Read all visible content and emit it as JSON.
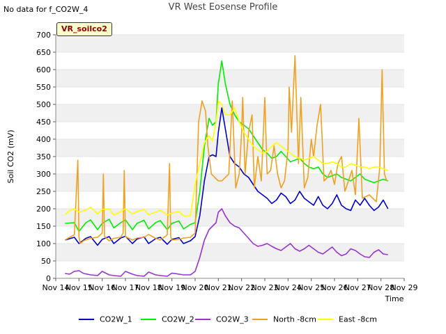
{
  "header": {
    "nodata_text": "No data for f_CO2W_4",
    "title": "VR West Eosense Profile",
    "site_badge": "VR_soilco2"
  },
  "chart_data": {
    "type": "line",
    "title": "VR West Eosense Profile",
    "xlabel": "Time",
    "ylabel": "Soil CO2 (mV)",
    "ylim": [
      0,
      700
    ],
    "yticks": [
      0,
      50,
      100,
      150,
      200,
      250,
      300,
      350,
      400,
      450,
      500,
      550,
      600,
      650,
      700
    ],
    "xlim": [
      14,
      29
    ],
    "xticks": [
      14,
      15,
      16,
      17,
      18,
      19,
      20,
      21,
      22,
      23,
      24,
      25,
      26,
      27,
      28,
      29
    ],
    "xtick_labels": [
      "Nov 14",
      "Nov 15",
      "Nov 16",
      "Nov 17",
      "Nov 18",
      "Nov 19",
      "Nov 20",
      "Nov 21",
      "Nov 22",
      "Nov 23",
      "Nov 24",
      "Nov 25",
      "Nov 26",
      "Nov 27",
      "Nov 28",
      "Nov 29"
    ],
    "grid": "horizontal bands",
    "legend": "bottom",
    "series": [
      {
        "name": "CO2W_1",
        "color": "#0000cc",
        "x": [
          14.4,
          14.8,
          15.0,
          15.3,
          15.5,
          15.8,
          16.0,
          16.3,
          16.5,
          16.8,
          17.0,
          17.3,
          17.5,
          17.8,
          18.0,
          18.3,
          18.5,
          18.8,
          19.0,
          19.3,
          19.5,
          19.8,
          20.0,
          20.2,
          20.4,
          20.6,
          20.75,
          20.9,
          21.0,
          21.15,
          21.3,
          21.5,
          21.7,
          21.9,
          22.1,
          22.3,
          22.5,
          22.7,
          22.9,
          23.1,
          23.3,
          23.5,
          23.7,
          23.9,
          24.1,
          24.3,
          24.5,
          24.7,
          24.9,
          25.1,
          25.3,
          25.5,
          25.7,
          25.9,
          26.1,
          26.3,
          26.5,
          26.7,
          26.9,
          27.1,
          27.3,
          27.5,
          27.7,
          27.9,
          28.1,
          28.3
        ],
        "y": [
          110,
          118,
          100,
          115,
          120,
          95,
          112,
          120,
          100,
          116,
          121,
          100,
          113,
          119,
          100,
          114,
          118,
          98,
          112,
          117,
          100,
          108,
          120,
          180,
          280,
          350,
          355,
          350,
          420,
          490,
          430,
          350,
          330,
          320,
          300,
          290,
          270,
          250,
          240,
          230,
          215,
          225,
          245,
          235,
          215,
          225,
          250,
          230,
          220,
          210,
          235,
          210,
          200,
          215,
          240,
          210,
          200,
          195,
          225,
          210,
          230,
          210,
          195,
          205,
          225,
          200
        ]
      },
      {
        "name": "CO2W_2",
        "color": "#00ee00",
        "x": [
          14.4,
          14.8,
          15.0,
          15.3,
          15.5,
          15.8,
          16.0,
          16.3,
          16.5,
          16.8,
          17.0,
          17.3,
          17.5,
          17.8,
          18.0,
          18.3,
          18.5,
          18.8,
          19.0,
          19.3,
          19.5,
          19.8,
          20.0,
          20.2,
          20.4,
          20.6,
          20.75,
          20.9,
          21.0,
          21.15,
          21.3,
          21.5,
          21.7,
          21.9,
          22.1,
          22.3,
          22.5,
          22.7,
          22.9,
          23.1,
          23.3,
          23.5,
          23.7,
          23.9,
          24.1,
          24.3,
          24.5,
          24.7,
          24.9,
          25.1,
          25.3,
          25.5,
          25.7,
          25.9,
          26.1,
          26.3,
          26.5,
          26.7,
          26.9,
          27.1,
          27.3,
          27.5,
          27.7,
          27.9,
          28.1,
          28.3
        ],
        "y": [
          158,
          160,
          135,
          160,
          168,
          140,
          158,
          170,
          145,
          160,
          168,
          140,
          158,
          167,
          142,
          160,
          166,
          140,
          158,
          165,
          142,
          155,
          160,
          250,
          380,
          460,
          440,
          450,
          560,
          625,
          560,
          500,
          470,
          450,
          440,
          430,
          410,
          390,
          370,
          360,
          345,
          350,
          365,
          350,
          335,
          340,
          345,
          330,
          320,
          315,
          320,
          300,
          290,
          295,
          300,
          290,
          285,
          280,
          290,
          300,
          285,
          280,
          275,
          280,
          285,
          280
        ]
      },
      {
        "name": "CO2W_3",
        "color": "#9933cc",
        "x": [
          14.4,
          14.6,
          14.8,
          15.0,
          15.2,
          15.5,
          15.8,
          16.0,
          16.3,
          16.5,
          16.8,
          17.0,
          17.3,
          17.5,
          17.8,
          18.0,
          18.3,
          18.5,
          18.8,
          19.0,
          19.3,
          19.5,
          19.8,
          20.0,
          20.2,
          20.4,
          20.6,
          20.75,
          20.9,
          21.0,
          21.15,
          21.3,
          21.5,
          21.7,
          21.9,
          22.1,
          22.3,
          22.5,
          22.7,
          22.9,
          23.1,
          23.3,
          23.5,
          23.7,
          23.9,
          24.1,
          24.3,
          24.5,
          24.7,
          24.9,
          25.1,
          25.3,
          25.5,
          25.7,
          25.9,
          26.1,
          26.3,
          26.5,
          26.7,
          26.9,
          27.1,
          27.3,
          27.5,
          27.7,
          27.9,
          28.1,
          28.3
        ],
        "y": [
          14,
          12,
          20,
          22,
          14,
          10,
          8,
          20,
          10,
          8,
          6,
          20,
          12,
          8,
          6,
          18,
          10,
          8,
          6,
          15,
          12,
          10,
          10,
          20,
          60,
          110,
          140,
          150,
          160,
          190,
          200,
          180,
          160,
          150,
          145,
          130,
          115,
          100,
          92,
          95,
          100,
          92,
          85,
          80,
          90,
          100,
          85,
          78,
          85,
          95,
          85,
          75,
          70,
          80,
          90,
          75,
          65,
          70,
          85,
          80,
          70,
          62,
          60,
          75,
          82,
          70,
          68
        ]
      },
      {
        "name": "North -8cm",
        "color": "#f0a020",
        "x": [
          14.4,
          14.6,
          14.8,
          14.95,
          15.0,
          15.05,
          15.2,
          15.5,
          15.8,
          16.0,
          16.05,
          16.1,
          16.3,
          16.5,
          16.8,
          16.9,
          16.95,
          17.0,
          17.3,
          17.5,
          17.8,
          18.0,
          18.3,
          18.5,
          18.8,
          18.9,
          18.95,
          19.0,
          19.3,
          19.5,
          19.8,
          20.0,
          20.15,
          20.3,
          20.45,
          20.55,
          20.7,
          20.85,
          21.0,
          21.15,
          21.3,
          21.45,
          21.6,
          21.75,
          21.9,
          22.0,
          22.05,
          22.15,
          22.3,
          22.45,
          22.55,
          22.7,
          22.85,
          23.0,
          23.1,
          23.25,
          23.4,
          23.55,
          23.7,
          23.85,
          24.0,
          24.05,
          24.15,
          24.3,
          24.45,
          24.55,
          24.7,
          24.85,
          25.0,
          25.1,
          25.25,
          25.4,
          25.55,
          25.7,
          25.85,
          26.0,
          26.15,
          26.3,
          26.45,
          26.6,
          26.75,
          26.9,
          27.05,
          27.2,
          27.35,
          27.5,
          27.65,
          27.8,
          27.95,
          28.05,
          28.15,
          28.25
        ],
        "y": [
          110,
          118,
          125,
          340,
          120,
          100,
          108,
          115,
          118,
          130,
          300,
          120,
          108,
          115,
          118,
          130,
          310,
          120,
          110,
          116,
          118,
          126,
          115,
          110,
          125,
          330,
          120,
          110,
          112,
          116,
          118,
          130,
          450,
          510,
          480,
          380,
          300,
          290,
          280,
          280,
          290,
          300,
          510,
          260,
          300,
          420,
          520,
          300,
          420,
          470,
          260,
          350,
          280,
          520,
          300,
          310,
          380,
          300,
          260,
          280,
          370,
          550,
          420,
          640,
          330,
          520,
          260,
          290,
          400,
          350,
          440,
          500,
          280,
          290,
          310,
          270,
          330,
          350,
          250,
          280,
          310,
          240,
          460,
          230,
          235,
          240,
          230,
          220,
          320,
          600,
          300,
          280
        ]
      },
      {
        "name": "East -8cm",
        "color": "#ffff00",
        "x": [
          14.4,
          14.6,
          14.8,
          15.0,
          15.3,
          15.5,
          15.8,
          16.0,
          16.3,
          16.5,
          16.8,
          17.0,
          17.3,
          17.5,
          17.8,
          18.0,
          18.3,
          18.5,
          18.8,
          19.0,
          19.3,
          19.5,
          19.8,
          20.0,
          20.2,
          20.4,
          20.6,
          20.75,
          20.9,
          21.0,
          21.15,
          21.3,
          21.5,
          21.7,
          21.9,
          22.1,
          22.3,
          22.5,
          22.7,
          22.9,
          23.1,
          23.3,
          23.5,
          23.7,
          23.9,
          24.1,
          24.3,
          24.5,
          24.7,
          24.9,
          25.1,
          25.3,
          25.5,
          25.7,
          25.9,
          26.1,
          26.3,
          26.5,
          26.7,
          26.9,
          27.1,
          27.3,
          27.5,
          27.7,
          27.9,
          28.1,
          28.3
        ],
        "y": [
          182,
          195,
          200,
          190,
          196,
          205,
          185,
          198,
          200,
          182,
          192,
          200,
          185,
          192,
          198,
          183,
          190,
          196,
          182,
          188,
          192,
          180,
          180,
          270,
          330,
          390,
          410,
          395,
          450,
          510,
          500,
          470,
          470,
          490,
          450,
          420,
          400,
          380,
          370,
          360,
          365,
          380,
          390,
          380,
          370,
          360,
          350,
          345,
          340,
          345,
          350,
          340,
          330,
          330,
          335,
          330,
          320,
          320,
          330,
          325,
          320,
          320,
          315,
          320,
          320,
          315,
          310
        ]
      }
    ]
  }
}
